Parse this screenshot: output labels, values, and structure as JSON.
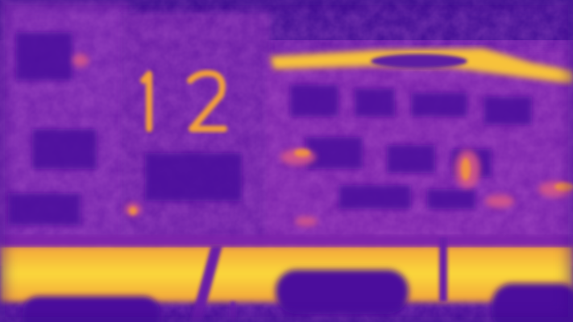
{
  "image": {
    "kind": "false-color thermal / heatmap photograph",
    "colormap": "plasma",
    "palette": {
      "cold": "#3a0a8c",
      "cool": "#6a1aa8",
      "mid": "#9a2fb0",
      "warm": "#d4578a",
      "hot": "#f59a3a",
      "hottest": "#fbd93a"
    },
    "sign_number": "12"
  }
}
